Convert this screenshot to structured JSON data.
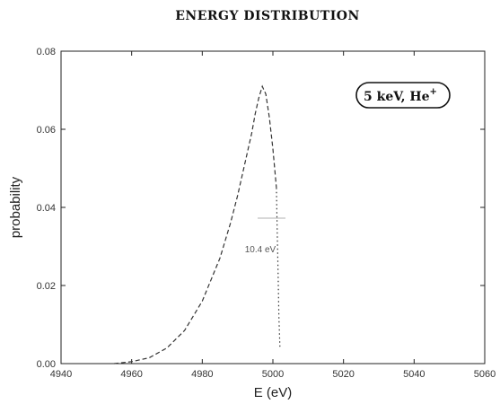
{
  "chart_data": {
    "type": "line",
    "title": "ENERGY DISTRIBUTION",
    "xlabel": "E (eV)",
    "ylabel": "probability",
    "xlim": [
      4940,
      5060
    ],
    "ylim": [
      0,
      0.08
    ],
    "xticks": [
      4940,
      4960,
      4980,
      5000,
      5020,
      5040,
      5060
    ],
    "yticks": [
      0.0,
      0.02,
      0.04,
      0.06,
      0.08
    ],
    "xtick_labels": [
      "4940",
      "4960",
      "4980",
      "5000",
      "5020",
      "5040",
      "5060"
    ],
    "ytick_labels": [
      "0.00",
      "0.02",
      "0.04",
      "0.06",
      "0.08"
    ],
    "legend_box": {
      "main": "5 keV, He",
      "sup": "+"
    },
    "annotation": "10.4 eV",
    "grid": false,
    "series": [
      {
        "style": "dashed",
        "x": [
          4955,
          4960,
          4965,
          4970,
          4975,
          4980,
          4985,
          4988,
          4990,
          4992,
          4994,
          4995,
          4996,
          4997,
          4998,
          4999,
          5000,
          5001
        ],
        "y": [
          0.0,
          0.0005,
          0.0015,
          0.004,
          0.0085,
          0.016,
          0.027,
          0.036,
          0.043,
          0.051,
          0.059,
          0.064,
          0.068,
          0.071,
          0.069,
          0.063,
          0.055,
          0.045
        ]
      },
      {
        "style": "dotted",
        "x": [
          5001,
          5001.2,
          5001.5,
          5001.7,
          5002
        ],
        "y": [
          0.045,
          0.035,
          0.022,
          0.012,
          0.004
        ]
      }
    ]
  }
}
